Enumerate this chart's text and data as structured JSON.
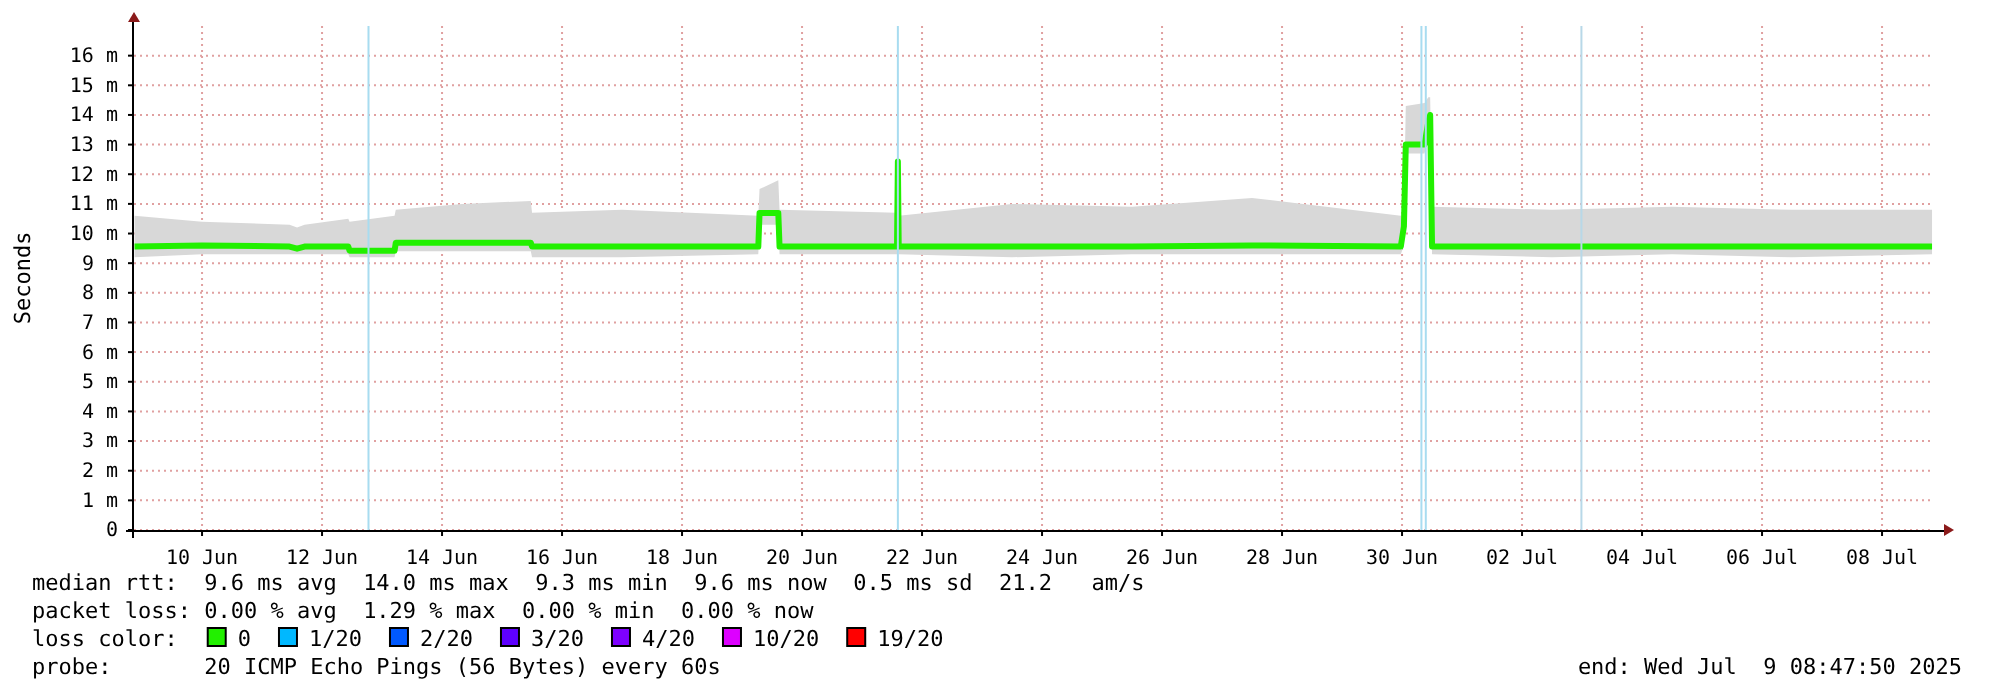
{
  "chart_data": {
    "type": "line",
    "ylabel": "Seconds",
    "legend_title": "loss color:",
    "legend": "bottom",
    "grid": true,
    "xlim": [
      "2025-06-09T08:47",
      "2025-07-09T08:47"
    ],
    "xticks": [
      {
        "value": "2025-06-10T12:00",
        "label": "10 Jun"
      },
      {
        "value": "2025-06-12T12:00",
        "label": "12 Jun"
      },
      {
        "value": "2025-06-14T12:00",
        "label": "14 Jun"
      },
      {
        "value": "2025-06-16T12:00",
        "label": "16 Jun"
      },
      {
        "value": "2025-06-18T12:00",
        "label": "18 Jun"
      },
      {
        "value": "2025-06-20T12:00",
        "label": "20 Jun"
      },
      {
        "value": "2025-06-22T12:00",
        "label": "22 Jun"
      },
      {
        "value": "2025-06-24T12:00",
        "label": "24 Jun"
      },
      {
        "value": "2025-06-26T12:00",
        "label": "26 Jun"
      },
      {
        "value": "2025-06-28T12:00",
        "label": "28 Jun"
      },
      {
        "value": "2025-06-30T12:00",
        "label": "30 Jun"
      },
      {
        "value": "2025-07-02T12:00",
        "label": "02 Jul"
      },
      {
        "value": "2025-07-04T12:00",
        "label": "04 Jul"
      },
      {
        "value": "2025-07-06T12:00",
        "label": "06 Jul"
      },
      {
        "value": "2025-07-08T12:00",
        "label": "08 Jul"
      }
    ],
    "ylim": [
      0,
      17
    ],
    "yticks": [
      0,
      {
        "value": 1,
        "label": "1 m"
      },
      {
        "value": 2,
        "label": "2 m"
      },
      {
        "value": 3,
        "label": "3 m"
      },
      {
        "value": 4,
        "label": "4 m"
      },
      {
        "value": 5,
        "label": "5 m"
      },
      {
        "value": 6,
        "label": "6 m"
      },
      {
        "value": 7,
        "label": "7 m"
      },
      {
        "value": 8,
        "label": "8 m"
      },
      {
        "value": 9,
        "label": "9 m"
      },
      {
        "value": 10,
        "label": "10 m"
      },
      {
        "value": 11,
        "label": "11 m"
      },
      {
        "value": 12,
        "label": "12 m"
      },
      {
        "value": 13,
        "label": "13 m"
      },
      {
        "value": 14,
        "label": "14 m"
      },
      {
        "value": 15,
        "label": "15 m"
      },
      {
        "value": 16,
        "label": "16 m"
      }
    ],
    "x": [
      "2025-06-09T09:00",
      "2025-06-10T12:00",
      "2025-06-11T23:00",
      "2025-06-12T02:00",
      "2025-06-12T05:00",
      "2025-06-12T22:30",
      "2025-06-12T23:00",
      "2025-06-13T17:00",
      "2025-06-13T17:30",
      "2025-06-14T20:00",
      "2025-06-15T23:30",
      "2025-06-16T00:00",
      "2025-06-17T12:00",
      "2025-06-19T18:30",
      "2025-06-19T19:00",
      "2025-06-20T02:30",
      "2025-06-20T03:00",
      "2025-06-22T02:00",
      "2025-06-22T02:20",
      "2025-06-22T02:40",
      "2025-06-24T00:00",
      "2025-06-26T00:00",
      "2025-06-28T00:00",
      "2025-06-30T11:30",
      "2025-06-30T12:45",
      "2025-06-30T13:30",
      "2025-06-30T21:00",
      "2025-06-30T22:30",
      "2025-06-30T23:15",
      "2025-07-01T00:00",
      "2025-07-03T00:00",
      "2025-07-05T00:00",
      "2025-07-07T00:00",
      "2025-07-09T08:00"
    ],
    "series": [
      {
        "name": "0",
        "color": "#22f000",
        "values": [
          9.56,
          9.6,
          9.56,
          9.49,
          9.56,
          9.56,
          9.42,
          9.42,
          9.69,
          9.69,
          9.69,
          9.56,
          9.56,
          9.56,
          10.69,
          10.69,
          9.56,
          9.56,
          12.43,
          9.56,
          9.56,
          9.56,
          9.6,
          9.56,
          10.24,
          13.0,
          13.0,
          13.76,
          14.0,
          9.56,
          9.56,
          9.56,
          9.56,
          9.56
        ],
        "lower": [
          9.2,
          9.3,
          9.3,
          9.3,
          9.3,
          9.3,
          9.2,
          9.2,
          9.4,
          9.4,
          9.4,
          9.2,
          9.2,
          9.3,
          10.3,
          10.3,
          9.3,
          9.3,
          9.5,
          9.3,
          9.2,
          9.3,
          9.3,
          9.3,
          9.6,
          12.7,
          12.7,
          13.4,
          13.6,
          9.3,
          9.2,
          9.3,
          9.2,
          9.3
        ],
        "upper": [
          10.6,
          10.4,
          10.3,
          10.2,
          10.3,
          10.5,
          10.4,
          10.6,
          10.8,
          11.0,
          11.1,
          10.7,
          10.8,
          10.6,
          11.5,
          11.8,
          10.8,
          10.7,
          12.5,
          10.6,
          11.0,
          10.9,
          11.2,
          10.6,
          10.9,
          14.3,
          14.4,
          14.6,
          14.6,
          10.9,
          10.8,
          10.9,
          10.8,
          10.8
        ]
      },
      {
        "name": "1/20",
        "color": "#00b8ff",
        "values": [
          null,
          null,
          null,
          null,
          null,
          null,
          null,
          null,
          null,
          null,
          null,
          null,
          null,
          null,
          null,
          null,
          null,
          null,
          null,
          null,
          null,
          null,
          null,
          null,
          null,
          null,
          null,
          null,
          null,
          null,
          null,
          null,
          null,
          null
        ]
      },
      {
        "name": "2/20",
        "color": "#0059ff",
        "values": [
          null,
          null,
          null,
          null,
          null,
          null,
          null,
          null,
          null,
          null,
          null,
          null,
          null,
          null,
          null,
          null,
          null,
          null,
          null,
          null,
          null,
          null,
          null,
          null,
          null,
          null,
          null,
          null,
          null,
          null,
          null,
          null,
          null,
          null
        ]
      },
      {
        "name": "3/20",
        "color": "#5e00ff",
        "values": [
          null,
          null,
          null,
          null,
          null,
          null,
          null,
          null,
          null,
          null,
          null,
          null,
          null,
          null,
          null,
          null,
          null,
          null,
          null,
          null,
          null,
          null,
          null,
          null,
          null,
          null,
          null,
          null,
          null,
          null,
          null,
          null,
          null,
          null
        ]
      },
      {
        "name": "4/20",
        "color": "#7e00ff",
        "values": [
          null,
          null,
          null,
          null,
          null,
          null,
          null,
          null,
          null,
          null,
          null,
          null,
          null,
          null,
          null,
          null,
          null,
          null,
          null,
          null,
          null,
          null,
          null,
          null,
          null,
          null,
          null,
          null,
          null,
          null,
          null,
          null,
          null,
          null
        ]
      },
      {
        "name": "10/20",
        "color": "#dd00ff",
        "values": [
          null,
          null,
          null,
          null,
          null,
          null,
          null,
          null,
          null,
          null,
          null,
          null,
          null,
          null,
          null,
          null,
          null,
          null,
          null,
          null,
          null,
          null,
          null,
          null,
          null,
          null,
          null,
          null,
          null,
          null,
          null,
          null,
          null,
          null
        ]
      },
      {
        "name": "19/20",
        "color": "#ff0000",
        "values": [
          null,
          null,
          null,
          null,
          null,
          null,
          null,
          null,
          null,
          null,
          null,
          null,
          null,
          null,
          null,
          null,
          null,
          null,
          null,
          null,
          null,
          null,
          null,
          null,
          null,
          null,
          null,
          null,
          null,
          null,
          null,
          null,
          null,
          null
        ]
      }
    ],
    "ref_lines": [
      {
        "axis": "x",
        "value": "2025-06-13T06:35",
        "color": "#a8dcf0"
      },
      {
        "axis": "x",
        "value": "2025-06-22T02:20",
        "color": "#a8dcf0"
      },
      {
        "axis": "x",
        "value": "2025-06-30T19:45",
        "color": "#a8dcf0"
      },
      {
        "axis": "x",
        "value": "2025-06-30T21:30",
        "color": "#a8dcf0"
      },
      {
        "axis": "x",
        "value": "2025-07-03T11:45",
        "color": "#b8d8e8"
      }
    ],
    "annotations": [
      "median rtt:  9.6 ms avg  14.0 ms max  9.3 ms min  9.6 ms now  0.5 ms sd  21.2   am/s",
      "packet loss: 0.00 % avg  1.29 % max  0.00 % min  0.00 % now",
      "probe:       20 ICMP Echo Pings (56 Bytes) every 60s",
      "end: Wed Jul  9 08:47:50 2025"
    ]
  }
}
